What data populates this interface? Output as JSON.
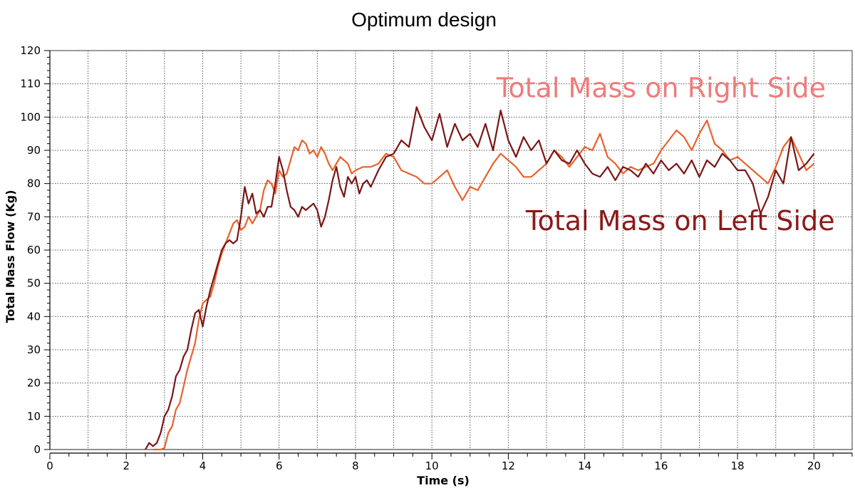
{
  "chart_data": {
    "type": "line",
    "title": "Optimum design",
    "xlabel": "Time (s)",
    "ylabel": "Total Mass Flow (Kg)",
    "xlim": [
      0,
      21
    ],
    "ylim": [
      0,
      120
    ],
    "xticks": [
      0,
      2,
      4,
      6,
      8,
      10,
      12,
      14,
      16,
      18,
      20
    ],
    "yticks": [
      0,
      10,
      20,
      30,
      40,
      50,
      60,
      70,
      80,
      90,
      100,
      110,
      120
    ],
    "grid": true,
    "legend": "none",
    "series": [
      {
        "name": "Total Mass on Right Side",
        "color": "#e9612c",
        "label_color": "#f07b7b",
        "label_at": [
          16.0,
          106
        ],
        "points": [
          [
            2.7,
            0
          ],
          [
            2.8,
            0
          ],
          [
            2.9,
            0
          ],
          [
            3.0,
            0.5
          ],
          [
            3.1,
            5
          ],
          [
            3.2,
            7
          ],
          [
            3.3,
            12
          ],
          [
            3.4,
            14
          ],
          [
            3.5,
            19
          ],
          [
            3.6,
            24
          ],
          [
            3.7,
            28
          ],
          [
            3.8,
            32
          ],
          [
            3.9,
            39
          ],
          [
            4.0,
            44
          ],
          [
            4.1,
            45
          ],
          [
            4.2,
            46
          ],
          [
            4.3,
            50
          ],
          [
            4.4,
            55
          ],
          [
            4.5,
            59
          ],
          [
            4.6,
            62
          ],
          [
            4.7,
            65
          ],
          [
            4.8,
            68
          ],
          [
            4.9,
            69
          ],
          [
            5.0,
            66
          ],
          [
            5.1,
            67
          ],
          [
            5.2,
            70
          ],
          [
            5.3,
            68
          ],
          [
            5.4,
            70
          ],
          [
            5.5,
            72
          ],
          [
            5.6,
            78
          ],
          [
            5.7,
            81
          ],
          [
            5.8,
            80
          ],
          [
            5.9,
            77
          ],
          [
            6.0,
            84
          ],
          [
            6.1,
            82
          ],
          [
            6.2,
            83
          ],
          [
            6.3,
            87
          ],
          [
            6.4,
            91
          ],
          [
            6.5,
            90
          ],
          [
            6.6,
            93
          ],
          [
            6.7,
            92
          ],
          [
            6.8,
            89
          ],
          [
            6.9,
            90
          ],
          [
            7.0,
            88
          ],
          [
            7.1,
            91
          ],
          [
            7.2,
            89
          ],
          [
            7.3,
            86
          ],
          [
            7.4,
            84
          ],
          [
            7.5,
            86
          ],
          [
            7.6,
            88
          ],
          [
            7.7,
            87
          ],
          [
            7.8,
            86
          ],
          [
            7.9,
            83
          ],
          [
            8.0,
            84
          ],
          [
            8.2,
            85
          ],
          [
            8.4,
            85
          ],
          [
            8.6,
            86
          ],
          [
            8.8,
            89
          ],
          [
            9.0,
            88
          ],
          [
            9.2,
            84
          ],
          [
            9.4,
            83
          ],
          [
            9.6,
            82
          ],
          [
            9.8,
            80
          ],
          [
            10.0,
            80
          ],
          [
            10.2,
            82
          ],
          [
            10.4,
            84
          ],
          [
            10.6,
            79
          ],
          [
            10.8,
            75
          ],
          [
            11.0,
            79
          ],
          [
            11.2,
            78
          ],
          [
            11.4,
            82
          ],
          [
            11.6,
            86
          ],
          [
            11.8,
            89
          ],
          [
            12.0,
            87
          ],
          [
            12.2,
            85
          ],
          [
            12.4,
            82
          ],
          [
            12.6,
            82
          ],
          [
            12.8,
            84
          ],
          [
            13.0,
            86
          ],
          [
            13.2,
            90
          ],
          [
            13.4,
            88
          ],
          [
            13.6,
            85
          ],
          [
            13.8,
            88
          ],
          [
            14.0,
            91
          ],
          [
            14.2,
            90
          ],
          [
            14.4,
            95
          ],
          [
            14.6,
            88
          ],
          [
            14.8,
            86
          ],
          [
            15.0,
            83
          ],
          [
            15.2,
            85
          ],
          [
            15.4,
            84
          ],
          [
            15.6,
            85
          ],
          [
            15.8,
            86
          ],
          [
            16.0,
            90
          ],
          [
            16.2,
            93
          ],
          [
            16.4,
            96
          ],
          [
            16.6,
            94
          ],
          [
            16.8,
            90
          ],
          [
            17.0,
            95
          ],
          [
            17.2,
            99
          ],
          [
            17.4,
            92
          ],
          [
            17.6,
            90
          ],
          [
            17.8,
            87
          ],
          [
            18.0,
            88
          ],
          [
            18.2,
            86
          ],
          [
            18.4,
            84
          ],
          [
            18.6,
            82
          ],
          [
            18.8,
            80
          ],
          [
            19.0,
            85
          ],
          [
            19.2,
            91
          ],
          [
            19.4,
            94
          ],
          [
            19.6,
            89
          ],
          [
            19.8,
            84
          ],
          [
            20.0,
            86
          ]
        ]
      },
      {
        "name": "Total Mass on Left Side",
        "color": "#7a1515",
        "label_color": "#8b1a1a",
        "label_at": [
          16.5,
          66
        ],
        "points": [
          [
            2.5,
            0
          ],
          [
            2.6,
            2
          ],
          [
            2.7,
            1
          ],
          [
            2.8,
            2
          ],
          [
            2.9,
            5
          ],
          [
            3.0,
            10
          ],
          [
            3.1,
            12
          ],
          [
            3.2,
            16
          ],
          [
            3.3,
            22
          ],
          [
            3.4,
            24
          ],
          [
            3.5,
            28
          ],
          [
            3.6,
            30
          ],
          [
            3.7,
            36
          ],
          [
            3.8,
            41
          ],
          [
            3.9,
            42
          ],
          [
            4.0,
            37
          ],
          [
            4.1,
            43
          ],
          [
            4.2,
            48
          ],
          [
            4.3,
            52
          ],
          [
            4.4,
            56
          ],
          [
            4.5,
            60
          ],
          [
            4.6,
            62
          ],
          [
            4.7,
            63
          ],
          [
            4.8,
            62
          ],
          [
            4.9,
            63
          ],
          [
            5.0,
            70
          ],
          [
            5.1,
            79
          ],
          [
            5.2,
            74
          ],
          [
            5.3,
            77
          ],
          [
            5.4,
            71
          ],
          [
            5.5,
            72
          ],
          [
            5.6,
            70
          ],
          [
            5.7,
            73
          ],
          [
            5.8,
            73
          ],
          [
            5.9,
            80
          ],
          [
            6.0,
            88
          ],
          [
            6.1,
            84
          ],
          [
            6.2,
            78
          ],
          [
            6.3,
            73
          ],
          [
            6.4,
            72
          ],
          [
            6.5,
            70
          ],
          [
            6.6,
            73
          ],
          [
            6.7,
            72
          ],
          [
            6.8,
            73
          ],
          [
            6.9,
            74
          ],
          [
            7.0,
            72
          ],
          [
            7.1,
            67
          ],
          [
            7.2,
            70
          ],
          [
            7.3,
            75
          ],
          [
            7.4,
            81
          ],
          [
            7.5,
            85
          ],
          [
            7.6,
            79
          ],
          [
            7.7,
            76
          ],
          [
            7.8,
            82
          ],
          [
            7.9,
            80
          ],
          [
            8.0,
            82
          ],
          [
            8.1,
            77
          ],
          [
            8.2,
            80
          ],
          [
            8.3,
            81
          ],
          [
            8.4,
            79
          ],
          [
            8.6,
            84
          ],
          [
            8.8,
            88
          ],
          [
            9.0,
            89
          ],
          [
            9.2,
            93
          ],
          [
            9.4,
            91
          ],
          [
            9.6,
            103
          ],
          [
            9.8,
            97
          ],
          [
            10.0,
            93
          ],
          [
            10.2,
            101
          ],
          [
            10.4,
            91
          ],
          [
            10.6,
            98
          ],
          [
            10.8,
            93
          ],
          [
            11.0,
            95
          ],
          [
            11.2,
            91
          ],
          [
            11.4,
            98
          ],
          [
            11.6,
            90
          ],
          [
            11.8,
            102
          ],
          [
            12.0,
            93
          ],
          [
            12.2,
            88
          ],
          [
            12.4,
            94
          ],
          [
            12.6,
            90
          ],
          [
            12.8,
            93
          ],
          [
            13.0,
            86
          ],
          [
            13.2,
            90
          ],
          [
            13.4,
            87
          ],
          [
            13.6,
            86
          ],
          [
            13.8,
            90
          ],
          [
            14.0,
            86
          ],
          [
            14.2,
            83
          ],
          [
            14.4,
            82
          ],
          [
            14.6,
            85
          ],
          [
            14.8,
            81
          ],
          [
            15.0,
            85
          ],
          [
            15.2,
            84
          ],
          [
            15.4,
            82
          ],
          [
            15.6,
            86
          ],
          [
            15.8,
            83
          ],
          [
            16.0,
            87
          ],
          [
            16.2,
            84
          ],
          [
            16.4,
            86
          ],
          [
            16.6,
            83
          ],
          [
            16.8,
            87
          ],
          [
            17.0,
            82
          ],
          [
            17.2,
            87
          ],
          [
            17.4,
            85
          ],
          [
            17.6,
            89
          ],
          [
            17.8,
            87
          ],
          [
            18.0,
            84
          ],
          [
            18.2,
            84
          ],
          [
            18.4,
            80
          ],
          [
            18.6,
            71
          ],
          [
            18.8,
            76
          ],
          [
            19.0,
            84
          ],
          [
            19.2,
            80
          ],
          [
            19.4,
            94
          ],
          [
            19.6,
            84
          ],
          [
            19.8,
            86
          ],
          [
            20.0,
            89
          ]
        ]
      }
    ]
  }
}
